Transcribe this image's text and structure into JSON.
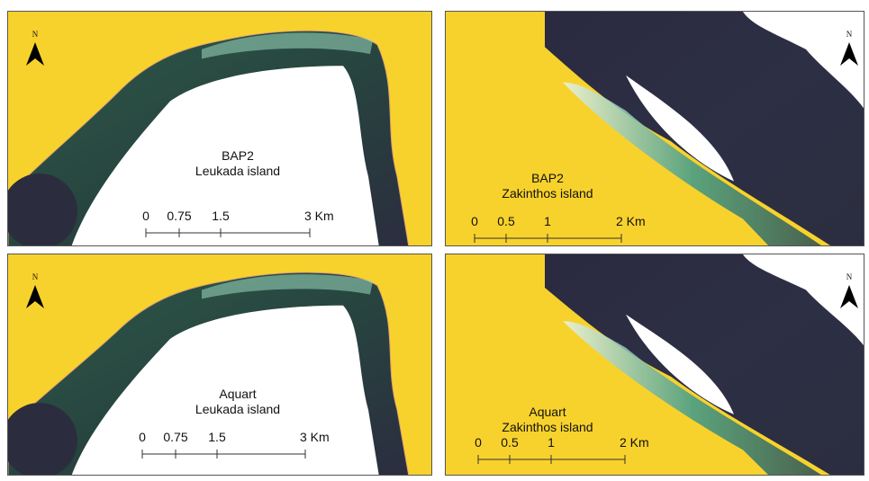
{
  "panels": [
    {
      "north": "N",
      "title": "BAP2",
      "subtitle": "Leukada island",
      "scale": [
        "0",
        "0.75",
        "1.5",
        "3 Km"
      ]
    },
    {
      "north": "N",
      "title": "BAP2",
      "subtitle": "Zakinthos island",
      "scale": [
        "0",
        "0.5",
        "1",
        "2 Km"
      ]
    },
    {
      "north": "N",
      "title": "Aquart",
      "subtitle": "Leukada island",
      "scale": [
        "0",
        "0.75",
        "1.5",
        "3 Km"
      ]
    },
    {
      "north": "N",
      "title": "Aquart",
      "subtitle": "Zakinthos island",
      "scale": [
        "0",
        "0.5",
        "1",
        "2 Km"
      ]
    }
  ]
}
